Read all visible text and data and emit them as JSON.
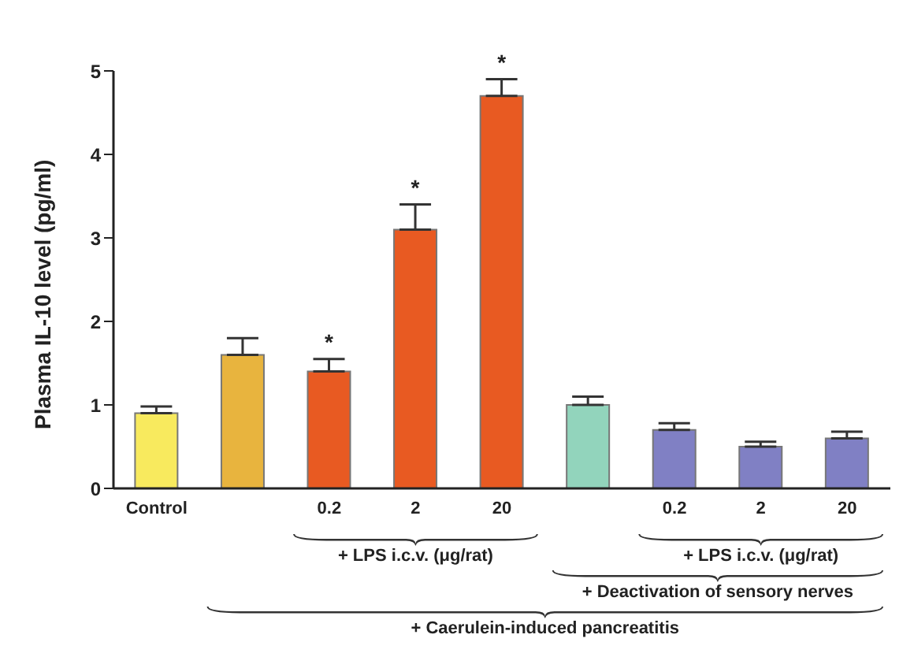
{
  "chart_data": {
    "type": "bar",
    "ylabel": "Plasma IL-10 level (pg/ml)",
    "categories": [
      "Control",
      null,
      "0.2",
      "2",
      "20",
      null,
      "0.2",
      "2",
      "20"
    ],
    "values": [
      0.9,
      1.6,
      1.4,
      3.1,
      4.7,
      1.0,
      0.7,
      0.5,
      0.6
    ],
    "colors": [
      "#f8ea5e",
      "#e8b43e",
      "#e85a22",
      "#e85a22",
      "#e85a22",
      "#92d4bc",
      "#8080c4",
      "#8080c4",
      "#8080c4"
    ],
    "errors": [
      [
        0.9,
        0.98
      ],
      [
        1.6,
        1.8
      ],
      [
        1.4,
        1.55
      ],
      [
        3.1,
        3.4
      ],
      [
        4.7,
        4.9
      ],
      [
        1.0,
        1.1
      ],
      [
        0.7,
        0.78
      ],
      [
        0.5,
        0.56
      ],
      [
        0.6,
        0.68
      ]
    ],
    "value_labels": [
      null,
      null,
      "*",
      "*",
      "*",
      null,
      null,
      null,
      null
    ],
    "ylim": [
      0,
      5
    ],
    "yticks": [
      0,
      1,
      2,
      3,
      4,
      5
    ],
    "grid": false,
    "annotations": [
      "+ LPS i.c.v. (μg/rat)",
      "+ LPS i.c.v. (μg/rat)",
      "+ Deactivation of sensory nerves",
      "+ Caerulein-induced pancreatitis"
    ]
  }
}
